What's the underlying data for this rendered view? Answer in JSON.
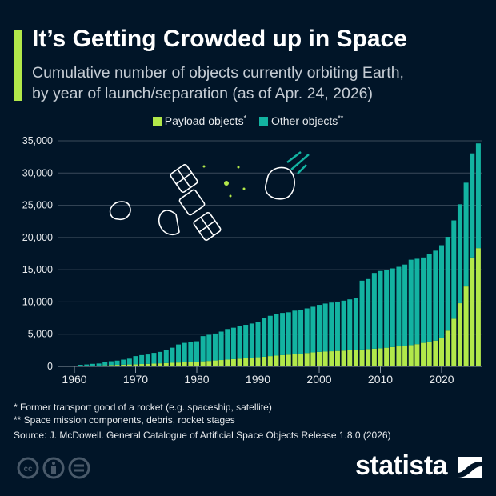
{
  "title": "It’s Getting Crowded up in Space",
  "subtitle_line1": "Cumulative number of objects currently orbiting Earth,",
  "subtitle_line2": "by year of launch/separation (as of Apr. 24, 2026)",
  "footnotes": [
    "*   Former transport good of a rocket (e.g. spaceship, satellite)",
    "** Space mission components, debris, rocket stages"
  ],
  "source": "Source: J. McDowell. General Catalogue of Artificial Space Objects Release 1.8.0 (2026)",
  "brand": "statista",
  "license_icons": [
    "cc-icon",
    "attribution-icon",
    "no-derivatives-icon"
  ],
  "colors": {
    "background": "#011528",
    "payload": "#b2e84a",
    "other": "#13b3a1",
    "accent": "#b2e84a"
  },
  "chart_data": {
    "type": "bar",
    "stacked": true,
    "title": "It’s Getting Crowded up in Space",
    "xlabel": "",
    "ylabel": "",
    "ylim": [
      0,
      35000
    ],
    "yticks": [
      "0",
      "5,000",
      "10,000",
      "15,000",
      "20,000",
      "25,000",
      "30,000",
      "35,000"
    ],
    "ytick_values": [
      0,
      5000,
      10000,
      15000,
      20000,
      25000,
      30000,
      35000
    ],
    "xticks": [
      "1960",
      "1970",
      "1980",
      "1990",
      "2000",
      "2010",
      "2020"
    ],
    "grid": true,
    "legend": "top",
    "categories": [
      1957,
      1958,
      1959,
      1960,
      1961,
      1962,
      1963,
      1964,
      1965,
      1966,
      1967,
      1968,
      1969,
      1970,
      1971,
      1972,
      1973,
      1974,
      1975,
      1976,
      1977,
      1978,
      1979,
      1980,
      1981,
      1982,
      1983,
      1984,
      1985,
      1986,
      1987,
      1988,
      1989,
      1990,
      1991,
      1992,
      1993,
      1994,
      1995,
      1996,
      1997,
      1998,
      1999,
      2000,
      2001,
      2002,
      2003,
      2004,
      2005,
      2006,
      2007,
      2008,
      2009,
      2010,
      2011,
      2012,
      2013,
      2014,
      2015,
      2016,
      2017,
      2018,
      2019,
      2020,
      2021,
      2022,
      2023,
      2024,
      2025,
      2026
    ],
    "series": [
      {
        "name": "Payload objects",
        "marker": "*",
        "values": [
          2,
          5,
          10,
          20,
          40,
          70,
          100,
          130,
          170,
          210,
          240,
          270,
          300,
          330,
          370,
          400,
          440,
          480,
          520,
          560,
          600,
          650,
          690,
          730,
          790,
          850,
          920,
          990,
          1060,
          1130,
          1200,
          1280,
          1350,
          1420,
          1500,
          1600,
          1680,
          1750,
          1820,
          1890,
          1980,
          2080,
          2170,
          2250,
          2300,
          2350,
          2400,
          2450,
          2500,
          2550,
          2620,
          2690,
          2750,
          2800,
          2900,
          3000,
          3100,
          3200,
          3300,
          3450,
          3650,
          3850,
          4000,
          4450,
          5550,
          7400,
          9800,
          12400,
          16900,
          18350
        ]
      },
      {
        "name": "Other objects",
        "marker": "**",
        "values": [
          3,
          5,
          30,
          80,
          210,
          230,
          300,
          320,
          480,
          590,
          660,
          780,
          900,
          1270,
          1380,
          1450,
          1660,
          1770,
          2080,
          2340,
          2800,
          3000,
          3110,
          3170,
          3910,
          4050,
          4180,
          4410,
          4740,
          4870,
          5050,
          5170,
          5300,
          5530,
          6000,
          6250,
          6470,
          6550,
          6580,
          6760,
          6770,
          6920,
          7080,
          7300,
          7450,
          7550,
          7600,
          7750,
          7900,
          8100,
          10680,
          10860,
          11750,
          12000,
          12100,
          12200,
          12350,
          12600,
          13250,
          13250,
          13250,
          13550,
          13950,
          14350,
          14550,
          15250,
          15350,
          16100,
          16150,
          16250
        ]
      }
    ]
  }
}
